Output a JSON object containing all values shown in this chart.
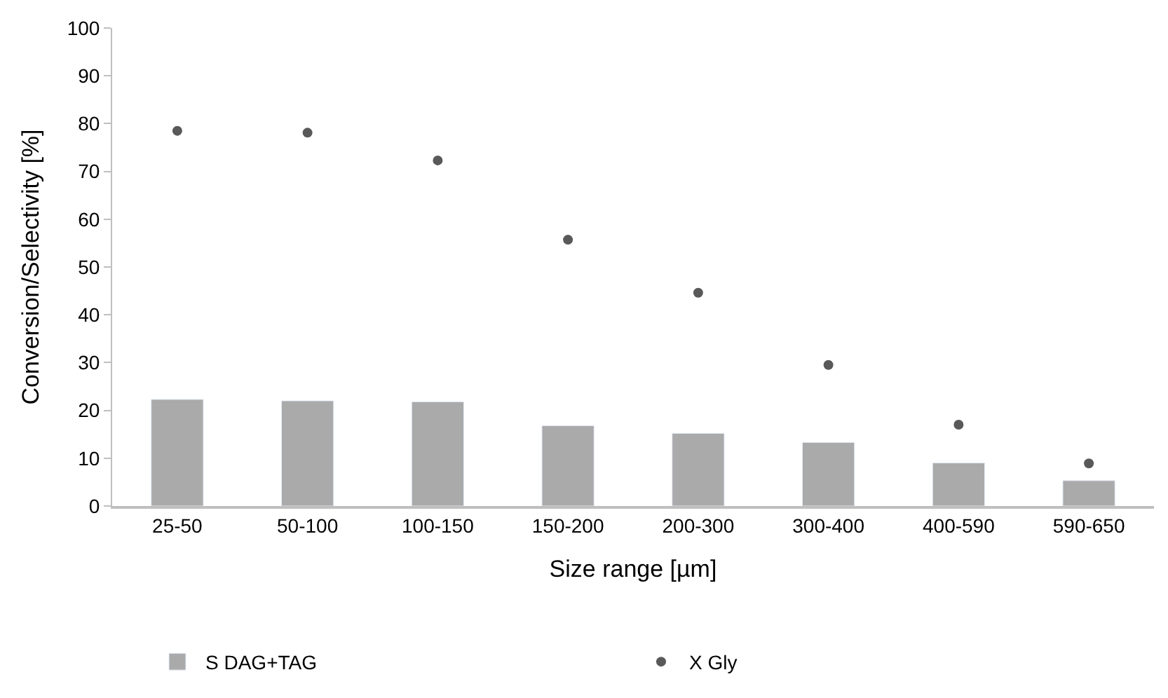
{
  "chart_data": {
    "type": "bar",
    "xlabel": "Size range [µm]",
    "ylabel": "Conversion/Selectivity [%]",
    "categories": [
      "25-50",
      "50-100",
      "100-150",
      "150-200",
      "200-300",
      "300-400",
      "400-590",
      "590-650"
    ],
    "series": [
      {
        "name": "S DAG+TAG",
        "color": "#aaaaaa",
        "values": [
          22.3,
          22.0,
          21.8,
          16.8,
          15.2,
          13.3,
          9.0,
          5.3
        ]
      },
      {
        "name": "X Gly",
        "type": "scatter",
        "color": "#595959",
        "marker": "circle",
        "values": [
          78.5,
          78.1,
          72.3,
          55.7,
          44.6,
          29.5,
          17.0,
          8.9
        ]
      }
    ],
    "ylim": [
      0,
      100
    ],
    "yticks": [
      0,
      10,
      20,
      30,
      40,
      50,
      60,
      70,
      80,
      90,
      100
    ],
    "grid": false,
    "legend": "bottom"
  }
}
